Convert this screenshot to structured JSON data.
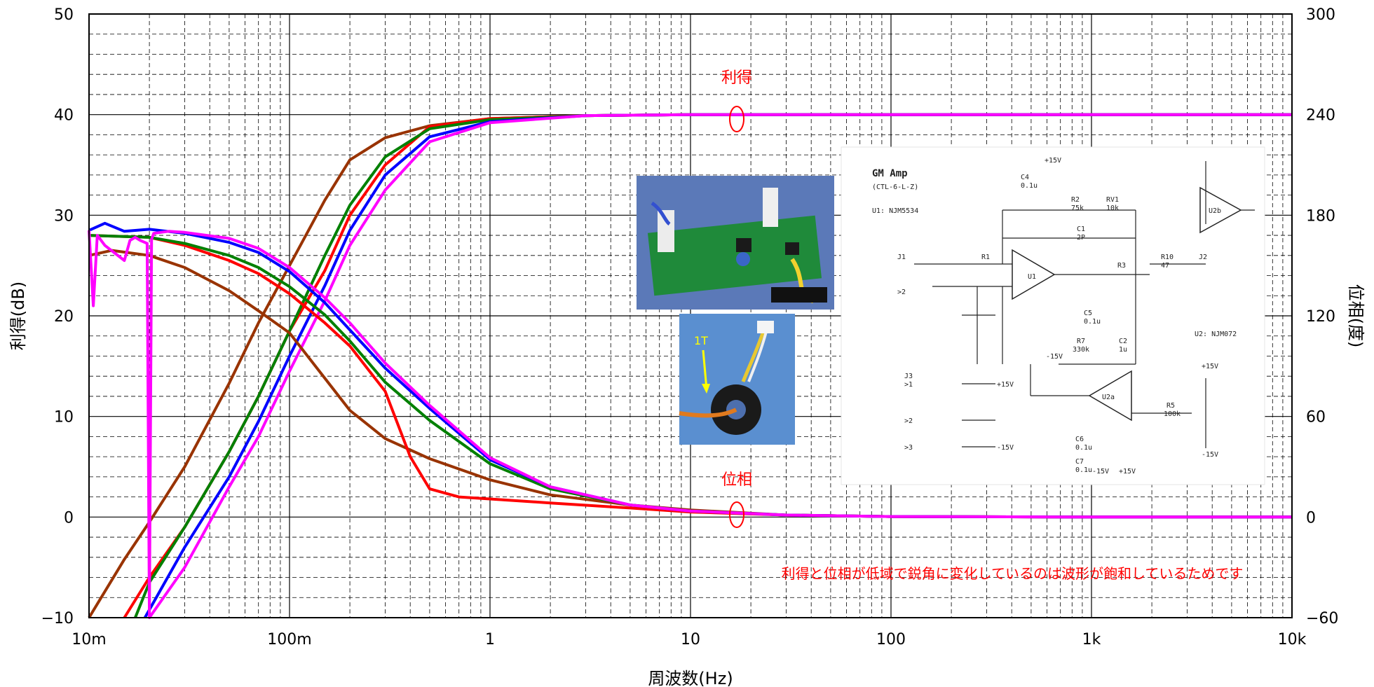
{
  "chart_data": {
    "type": "line",
    "xlabel": "周波数(Hz)",
    "ylabel_left": "利得(dB)",
    "ylabel_right": "位相(度)",
    "x_scale": "log",
    "xlim": [
      0.01,
      10000
    ],
    "ylim_left": [
      -10,
      50
    ],
    "ylim_right": [
      -60,
      300
    ],
    "grid": true,
    "x_ticks": [
      {
        "value": 0.01,
        "label": "10m"
      },
      {
        "value": 0.1,
        "label": "100m"
      },
      {
        "value": 1,
        "label": "1"
      },
      {
        "value": 10,
        "label": "10"
      },
      {
        "value": 100,
        "label": "100"
      },
      {
        "value": 1000,
        "label": "1k"
      },
      {
        "value": 10000,
        "label": "10k"
      }
    ],
    "y_ticks_left": [
      {
        "value": -10,
        "label": "−10"
      },
      {
        "value": 0,
        "label": "0"
      },
      {
        "value": 10,
        "label": "10"
      },
      {
        "value": 20,
        "label": "20"
      },
      {
        "value": 30,
        "label": "30"
      },
      {
        "value": 40,
        "label": "40"
      },
      {
        "value": 50,
        "label": "50"
      }
    ],
    "y_ticks_right": [
      {
        "value": -60,
        "label": "−60"
      },
      {
        "value": 0,
        "label": "0"
      },
      {
        "value": 60,
        "label": "60"
      },
      {
        "value": 120,
        "label": "120"
      },
      {
        "value": 180,
        "label": "180"
      },
      {
        "value": 240,
        "label": "240"
      },
      {
        "value": 300,
        "label": "300"
      }
    ],
    "annotations": {
      "gain": "利得",
      "phase": "位相",
      "note": "利得と位相が低域で鋭角に変化しているのは波形が飽和しているためです",
      "turns": "1T"
    },
    "series": [
      {
        "group": "gain",
        "color": "#993300",
        "x": [
          0.01,
          0.015,
          0.02,
          0.03,
          0.05,
          0.07,
          0.1,
          0.15,
          0.2,
          0.3,
          0.5,
          1,
          3,
          10,
          100,
          1000,
          10000
        ],
        "y": [
          -10,
          -4.2,
          -0.5,
          5,
          13.3,
          19.3,
          25,
          31.5,
          35.5,
          37.7,
          38.9,
          39.6,
          39.9,
          40,
          40,
          40,
          40
        ]
      },
      {
        "group": "gain",
        "color": "#ff0000",
        "x": [
          0.015,
          0.02,
          0.03,
          0.05,
          0.07,
          0.1,
          0.15,
          0.2,
          0.3,
          0.5,
          1,
          3,
          10,
          100,
          1000,
          10000
        ],
        "y": [
          -10,
          -6,
          -1,
          6.5,
          12,
          18.5,
          24.5,
          30,
          35,
          38.8,
          39.6,
          39.9,
          40,
          40,
          40,
          40
        ]
      },
      {
        "group": "gain",
        "color": "#008000",
        "x": [
          0.017,
          0.02,
          0.03,
          0.05,
          0.07,
          0.1,
          0.15,
          0.2,
          0.3,
          0.5,
          1,
          3,
          10,
          100,
          1000,
          10000
        ],
        "y": [
          -10,
          -6.5,
          -1,
          6.5,
          12,
          18.5,
          26,
          31,
          35.8,
          38.6,
          39.5,
          39.9,
          40,
          40,
          40,
          40
        ]
      },
      {
        "group": "gain",
        "color": "#0000ff",
        "x": [
          0.019,
          0.03,
          0.05,
          0.07,
          0.1,
          0.15,
          0.2,
          0.3,
          0.5,
          1,
          3,
          10,
          100,
          1000,
          10000
        ],
        "y": [
          -10,
          -3,
          4,
          9.5,
          16,
          23,
          28.5,
          34,
          37.8,
          39.3,
          39.9,
          40,
          40,
          40,
          40
        ]
      },
      {
        "group": "gain",
        "color": "#ff00ff",
        "x": [
          0.02,
          0.03,
          0.05,
          0.07,
          0.1,
          0.15,
          0.2,
          0.3,
          0.5,
          1,
          3,
          10,
          100,
          1000,
          10000
        ],
        "y": [
          -10,
          -5,
          3,
          8,
          14.5,
          21.5,
          27,
          32.5,
          37.3,
          39.2,
          39.9,
          40,
          40,
          40,
          40
        ]
      },
      {
        "group": "phase",
        "color": "#993300",
        "x": [
          0.01,
          0.013,
          0.02,
          0.03,
          0.05,
          0.07,
          0.1,
          0.15,
          0.2,
          0.3,
          0.5,
          1,
          2,
          5,
          10,
          30,
          100,
          1000,
          10000
        ],
        "y": [
          26,
          26.5,
          26,
          24.8,
          22.5,
          20.5,
          18.3,
          13.8,
          10.6,
          7.8,
          5.8,
          3.7,
          2.2,
          1.2,
          0.7,
          0.2,
          0.05,
          0,
          0
        ]
      },
      {
        "group": "phase",
        "color": "#ff0000",
        "x": [
          0.01,
          0.02,
          0.03,
          0.05,
          0.07,
          0.1,
          0.15,
          0.2,
          0.3,
          0.4,
          0.5,
          0.7,
          1,
          2,
          5,
          10,
          30,
          100,
          1000,
          10000
        ],
        "y": [
          28,
          27.8,
          27,
          25.5,
          24.2,
          22.2,
          19.3,
          17,
          12.5,
          6,
          2.8,
          2,
          1.8,
          1.4,
          0.9,
          0.5,
          0.2,
          0.05,
          0,
          0
        ]
      },
      {
        "group": "phase",
        "color": "#008000",
        "x": [
          0.01,
          0.02,
          0.03,
          0.05,
          0.07,
          0.1,
          0.15,
          0.2,
          0.3,
          0.5,
          1,
          2,
          5,
          10,
          30,
          100,
          1000,
          10000
        ],
        "y": [
          28,
          27.8,
          27.2,
          26,
          24.8,
          22.9,
          20.1,
          17.5,
          13.4,
          9.6,
          5.3,
          2.8,
          1.2,
          0.6,
          0.2,
          0.05,
          0,
          0
        ]
      },
      {
        "group": "phase",
        "color": "#0000ff",
        "x": [
          0.01,
          0.012,
          0.015,
          0.02,
          0.03,
          0.05,
          0.07,
          0.1,
          0.15,
          0.2,
          0.3,
          0.5,
          1,
          2,
          5,
          10,
          30,
          100,
          1000,
          10000
        ],
        "y": [
          28.5,
          29.2,
          28.4,
          28.6,
          28.2,
          27.3,
          26.3,
          24.4,
          21.3,
          18.6,
          14.8,
          10.8,
          5.7,
          3,
          1.2,
          0.6,
          0.2,
          0.05,
          0,
          0
        ]
      },
      {
        "group": "phase",
        "color": "#ff00ff",
        "x": [
          0.01,
          0.0105,
          0.011,
          0.012,
          0.015,
          0.016,
          0.017,
          0.018,
          0.0195,
          0.02,
          0.0205,
          0.021,
          0.025,
          0.03,
          0.05,
          0.07,
          0.1,
          0.15,
          0.2,
          0.3,
          0.5,
          1,
          2,
          5,
          10,
          30,
          100,
          1000,
          10000
        ],
        "y": [
          28.5,
          21,
          28,
          27,
          25.5,
          27.5,
          27.8,
          27.5,
          27.2,
          -10,
          27.6,
          28.2,
          28.4,
          28.3,
          27.7,
          26.7,
          24.8,
          21.8,
          19.3,
          15.3,
          11.1,
          5.9,
          3,
          1.2,
          0.6,
          0.2,
          0.05,
          0,
          0
        ]
      }
    ]
  }
}
